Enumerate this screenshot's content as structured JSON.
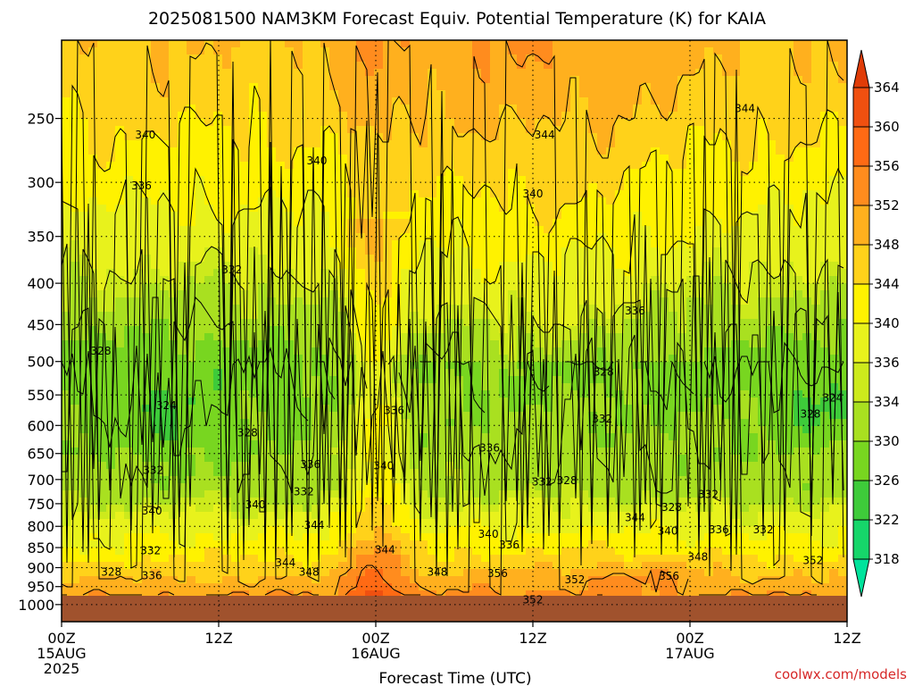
{
  "chart_data": {
    "type": "heatmap",
    "title": "2025081500 NAM3KM Forecast Equiv. Potential Temperature (K) for KAIA",
    "xlabel": "Forecast Time (UTC)",
    "ylabel": "",
    "credit": "coolwx.com/models",
    "x_ticks": [
      {
        "hour": 0,
        "label": "00Z",
        "sub1": "15AUG",
        "sub2": "2025"
      },
      {
        "hour": 12,
        "label": "12Z",
        "sub1": "",
        "sub2": ""
      },
      {
        "hour": 24,
        "label": "00Z",
        "sub1": "16AUG",
        "sub2": ""
      },
      {
        "hour": 36,
        "label": "12Z",
        "sub1": "",
        "sub2": ""
      },
      {
        "hour": 48,
        "label": "00Z",
        "sub1": "17AUG",
        "sub2": ""
      },
      {
        "hour": 60,
        "label": "12Z",
        "sub1": "",
        "sub2": ""
      }
    ],
    "xlim_hours": [
      0,
      60
    ],
    "y_pressure_levels": [
      250,
      300,
      350,
      400,
      450,
      500,
      550,
      600,
      650,
      700,
      750,
      800,
      850,
      900,
      950,
      1000
    ],
    "ylim_hPa": [
      200,
      1050
    ],
    "y_scale": "log-pressure",
    "grid": true,
    "colorbar": {
      "levels": [
        318,
        322,
        326,
        330,
        334,
        336,
        340,
        344,
        348,
        352,
        356,
        360,
        364
      ],
      "colors": [
        "#00e39c",
        "#16d66a",
        "#3ecb3a",
        "#78d620",
        "#a9e020",
        "#cdea1c",
        "#e8f21c",
        "#fff200",
        "#ffd21a",
        "#ffb01e",
        "#ff8c1e",
        "#ff6a14",
        "#f05010",
        "#e03c08"
      ],
      "units": "K"
    },
    "ground_color": "#a0522d",
    "contour_labels": [
      {
        "hour": 6.4,
        "p": 262,
        "value": "340"
      },
      {
        "hour": 6.1,
        "p": 303,
        "value": "336"
      },
      {
        "hour": 13.0,
        "p": 385,
        "value": "332"
      },
      {
        "hour": 3.0,
        "p": 485,
        "value": "328"
      },
      {
        "hour": 8.0,
        "p": 567,
        "value": "324"
      },
      {
        "hour": 14.2,
        "p": 613,
        "value": "328"
      },
      {
        "hour": 7.0,
        "p": 682,
        "value": "332"
      },
      {
        "hour": 19.0,
        "p": 671,
        "value": "336"
      },
      {
        "hour": 18.5,
        "p": 725,
        "value": "332"
      },
      {
        "hour": 14.8,
        "p": 752,
        "value": "340"
      },
      {
        "hour": 6.9,
        "p": 766,
        "value": "340"
      },
      {
        "hour": 19.3,
        "p": 797,
        "value": "344"
      },
      {
        "hour": 6.8,
        "p": 858,
        "value": "332"
      },
      {
        "hour": 3.8,
        "p": 912,
        "value": "328"
      },
      {
        "hour": 6.9,
        "p": 921,
        "value": "336"
      },
      {
        "hour": 17.1,
        "p": 888,
        "value": "344"
      },
      {
        "hour": 18.9,
        "p": 912,
        "value": "348"
      },
      {
        "hour": 19.5,
        "p": 282,
        "value": "340"
      },
      {
        "hour": 25.4,
        "p": 575,
        "value": "336"
      },
      {
        "hour": 24.6,
        "p": 673,
        "value": "340"
      },
      {
        "hour": 24.7,
        "p": 855,
        "value": "344"
      },
      {
        "hour": 28.7,
        "p": 912,
        "value": "348"
      },
      {
        "hour": 36.9,
        "p": 262,
        "value": "344"
      },
      {
        "hour": 36.0,
        "p": 310,
        "value": "340"
      },
      {
        "hour": 32.7,
        "p": 640,
        "value": "336"
      },
      {
        "hour": 36.7,
        "p": 705,
        "value": "332"
      },
      {
        "hour": 38.6,
        "p": 702,
        "value": "328"
      },
      {
        "hour": 32.6,
        "p": 818,
        "value": "340"
      },
      {
        "hour": 34.2,
        "p": 843,
        "value": "336"
      },
      {
        "hour": 33.3,
        "p": 915,
        "value": "356"
      },
      {
        "hour": 39.2,
        "p": 932,
        "value": "352"
      },
      {
        "hour": 36.0,
        "p": 986,
        "value": "352"
      },
      {
        "hour": 43.8,
        "p": 433,
        "value": "336"
      },
      {
        "hour": 41.4,
        "p": 515,
        "value": "328"
      },
      {
        "hour": 41.3,
        "p": 589,
        "value": "332"
      },
      {
        "hour": 52.2,
        "p": 243,
        "value": "344"
      },
      {
        "hour": 46.6,
        "p": 758,
        "value": "328"
      },
      {
        "hour": 43.8,
        "p": 780,
        "value": "344"
      },
      {
        "hour": 46.3,
        "p": 811,
        "value": "340"
      },
      {
        "hour": 50.2,
        "p": 808,
        "value": "336"
      },
      {
        "hour": 53.6,
        "p": 808,
        "value": "332"
      },
      {
        "hour": 49.4,
        "p": 730,
        "value": "332"
      },
      {
        "hour": 48.6,
        "p": 873,
        "value": "348"
      },
      {
        "hour": 46.4,
        "p": 922,
        "value": "356"
      },
      {
        "hour": 57.2,
        "p": 581,
        "value": "328"
      },
      {
        "hour": 58.9,
        "p": 555,
        "value": "324"
      },
      {
        "hour": 57.4,
        "p": 882,
        "value": "352"
      }
    ]
  }
}
